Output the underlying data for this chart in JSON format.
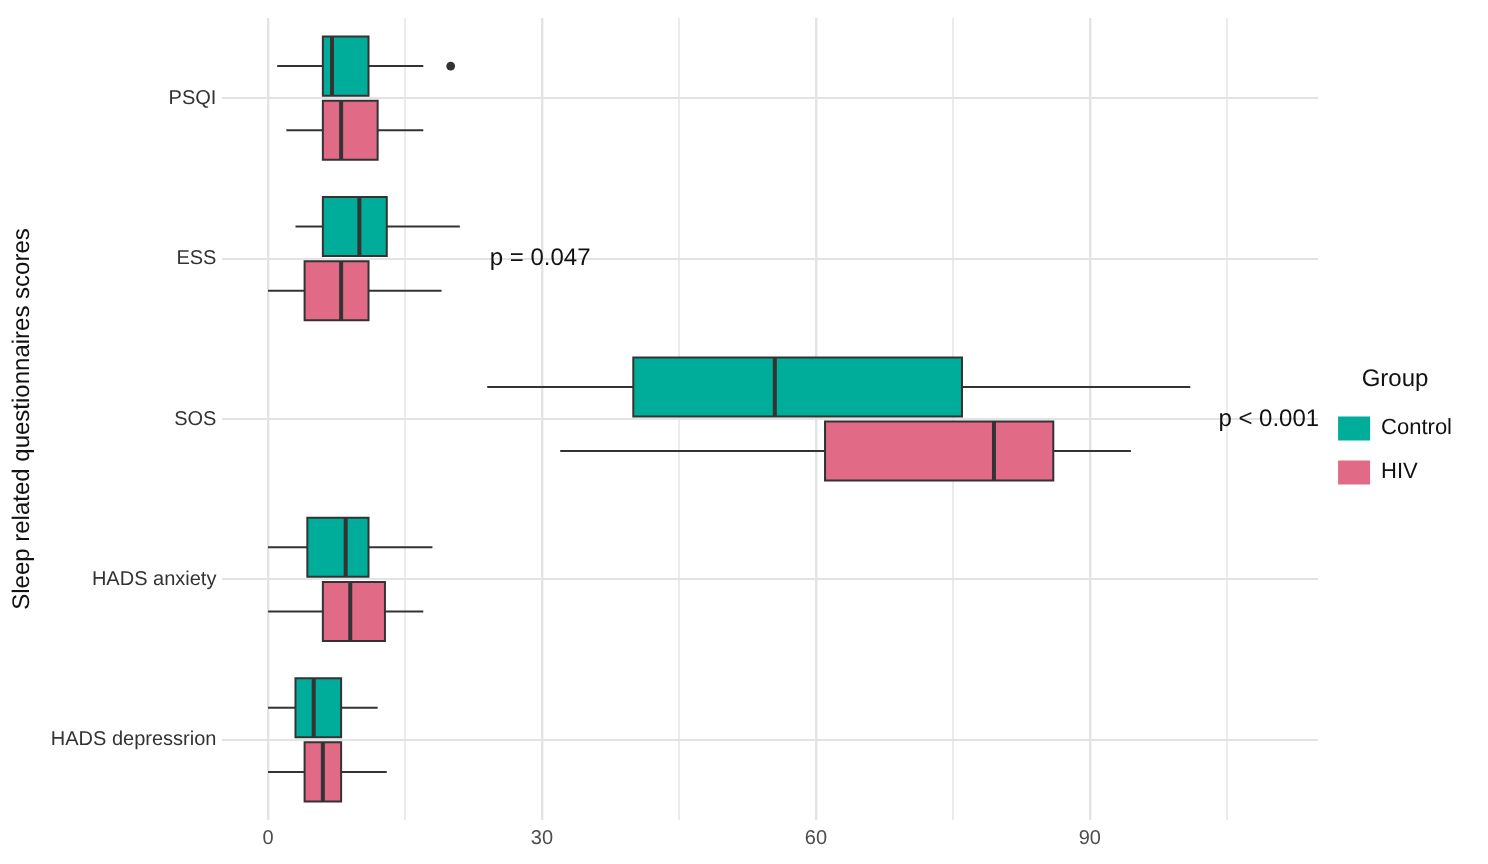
{
  "chart_data": {
    "type": "box",
    "orientation": "horizontal",
    "categories": [
      "PSQI",
      "ESS",
      "SOS",
      "HADS anxiety",
      "HADS depressrion"
    ],
    "ylabel": "Sleep related questionnaires scores",
    "legend_title": "Group",
    "legend": "right",
    "grid": true,
    "xlim": [
      -5,
      115
    ],
    "xticks": [
      0,
      {
        "value": 15,
        "label": null
      },
      30,
      {
        "value": 45,
        "label": null
      },
      60,
      {
        "value": 75,
        "label": null
      },
      90,
      {
        "value": 105,
        "label": null
      }
    ],
    "series": [
      {
        "name": "Control",
        "color": "#00ad9a",
        "boxes": [
          {
            "low": 1,
            "q1": 6,
            "median": 7,
            "q3": 11,
            "high": 17,
            "outliers": [
              20
            ]
          },
          {
            "low": 3,
            "q1": 6,
            "median": 10,
            "q3": 13,
            "high": 21
          },
          {
            "low": 24,
            "q1": 40,
            "median": 55.5,
            "q3": 76,
            "high": 101
          },
          {
            "low": 0,
            "q1": 4.3,
            "median": 8.5,
            "q3": 11,
            "high": 18
          },
          {
            "low": 0,
            "q1": 3,
            "median": 5,
            "q3": 8,
            "high": 12
          }
        ]
      },
      {
        "name": "HIV",
        "color": "#e16a86",
        "boxes": [
          {
            "low": 2,
            "q1": 6,
            "median": 8,
            "q3": 12,
            "high": 17
          },
          {
            "low": 0,
            "q1": 4,
            "median": 8,
            "q3": 11,
            "high": 19
          },
          {
            "low": 32,
            "q1": 61,
            "median": 79.5,
            "q3": 86,
            "high": 94.5
          },
          {
            "low": 0,
            "q1": 6,
            "median": 9,
            "q3": 12.8,
            "high": 17
          },
          {
            "low": 0,
            "q1": 4,
            "median": 6,
            "q3": 8,
            "high": 13
          }
        ]
      }
    ],
    "annotations": [
      "p = 0.047",
      "p < 0.001"
    ]
  }
}
